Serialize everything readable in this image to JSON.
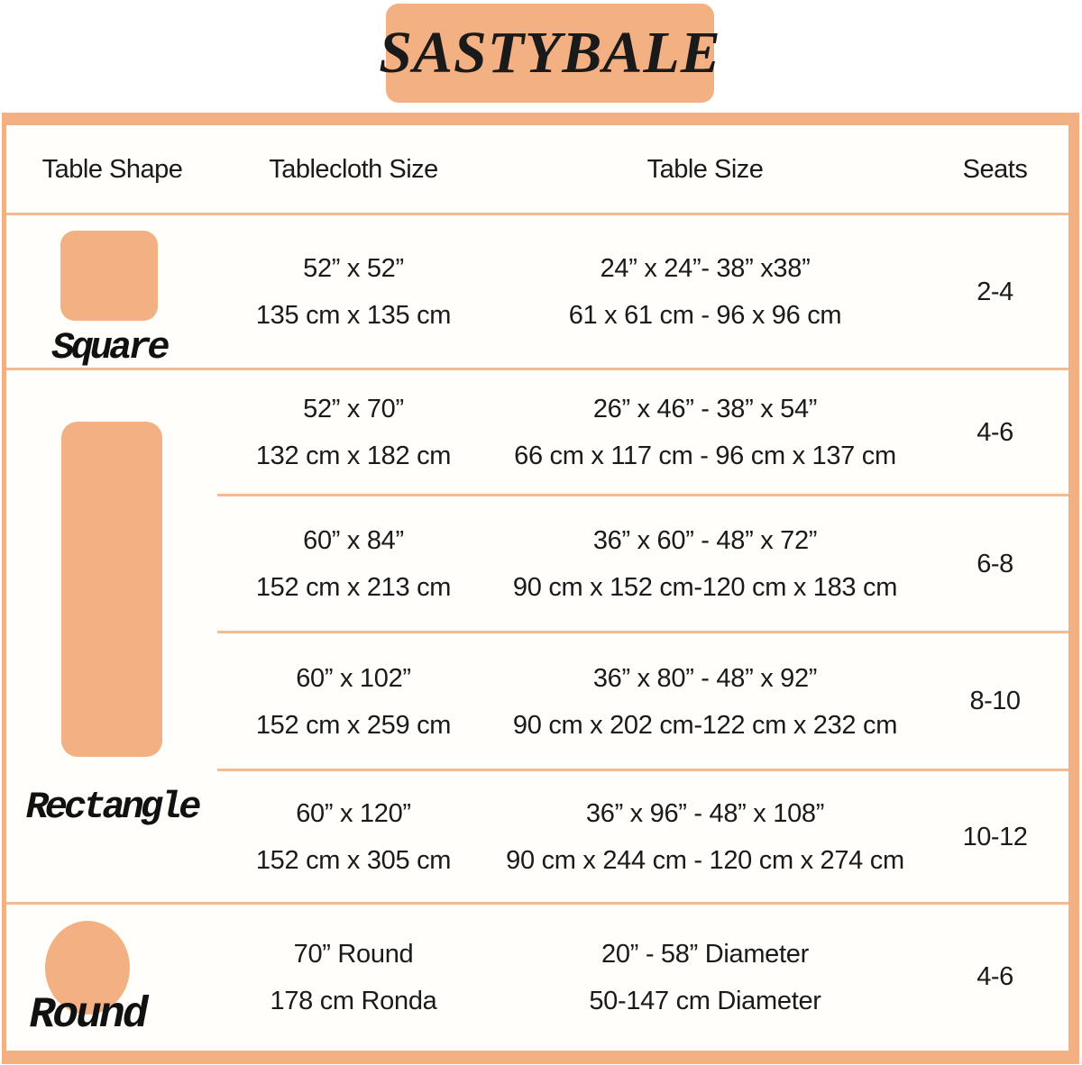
{
  "brand": "SASTYBALE",
  "colors": {
    "peach": "#F3B083",
    "divider": "#F2BB92",
    "text": "#1A1A1A",
    "background": "#FFFEFA"
  },
  "table": {
    "headers": [
      "Table Shape",
      "Tablecloth Size",
      "Table Size",
      "Seats"
    ],
    "shapes": {
      "square": "Square",
      "rectangle": "Rectangle",
      "round": "Round"
    },
    "rows": [
      {
        "shape": "Square",
        "tablecloth_in": "52” x 52”",
        "tablecloth_cm": "135 cm x 135 cm",
        "table_in": "24” x 24”- 38” x38”",
        "table_cm": "61 x 61 cm - 96 x 96 cm",
        "seats": "2-4"
      },
      {
        "shape": "Rectangle",
        "tablecloth_in": "52” x 70”",
        "tablecloth_cm": "132 cm x 182 cm",
        "table_in": "26” x 46” - 38” x 54”",
        "table_cm": "66 cm x 117 cm - 96 cm x 137 cm",
        "seats": "4-6"
      },
      {
        "shape": "Rectangle",
        "tablecloth_in": "60” x 84”",
        "tablecloth_cm": "152 cm x 213 cm",
        "table_in": "36” x 60” - 48” x 72”",
        "table_cm": "90 cm x 152 cm-120 cm x 183 cm",
        "seats": "6-8"
      },
      {
        "shape": "Rectangle",
        "tablecloth_in": "60” x 102”",
        "tablecloth_cm": "152 cm x 259 cm",
        "table_in": "36” x 80” - 48” x 92”",
        "table_cm": "90 cm x 202 cm-122 cm x 232 cm",
        "seats": "8-10"
      },
      {
        "shape": "Rectangle",
        "tablecloth_in": "60” x 120”",
        "tablecloth_cm": "152 cm x 305 cm",
        "table_in": "36” x 96” - 48” x 108”",
        "table_cm": "90 cm x 244 cm - 120 cm x 274 cm",
        "seats": "10-12"
      },
      {
        "shape": "Round",
        "tablecloth_in": "70” Round",
        "tablecloth_cm": "178 cm Ronda",
        "table_in": "20” - 58” Diameter",
        "table_cm": "50-147 cm Diameter",
        "seats": "4-6"
      }
    ]
  },
  "chart_data": {
    "type": "table",
    "title": "SASTYBALE tablecloth size chart",
    "columns": [
      "Table Shape",
      "Tablecloth Size",
      "Table Size",
      "Seats"
    ],
    "rows": [
      [
        "Square",
        "52” x 52” / 135 cm x 135 cm",
        "24” x 24”- 38” x38” / 61 x 61 cm - 96 x 96 cm",
        "2-4"
      ],
      [
        "Rectangle",
        "52” x 70” / 132 cm x 182 cm",
        "26” x 46” - 38” x 54” / 66 cm x 117 cm - 96 cm x 137 cm",
        "4-6"
      ],
      [
        "Rectangle",
        "60” x 84” / 152 cm x 213 cm",
        "36” x 60” - 48” x 72” / 90 cm x 152 cm-120 cm x 183 cm",
        "6-8"
      ],
      [
        "Rectangle",
        "60” x 102” / 152 cm x 259 cm",
        "36” x 80” - 48” x 92” / 90 cm x 202 cm-122 cm x 232 cm",
        "8-10"
      ],
      [
        "Rectangle",
        "60” x 120” / 152 cm x 305 cm",
        "36” x 96” - 48” x 108” / 90 cm x 244 cm - 120 cm x 274 cm",
        "10-12"
      ],
      [
        "Round",
        "70” Round / 178 cm Ronda",
        "20” - 58” Diameter / 50-147 cm Diameter",
        "4-6"
      ]
    ]
  }
}
